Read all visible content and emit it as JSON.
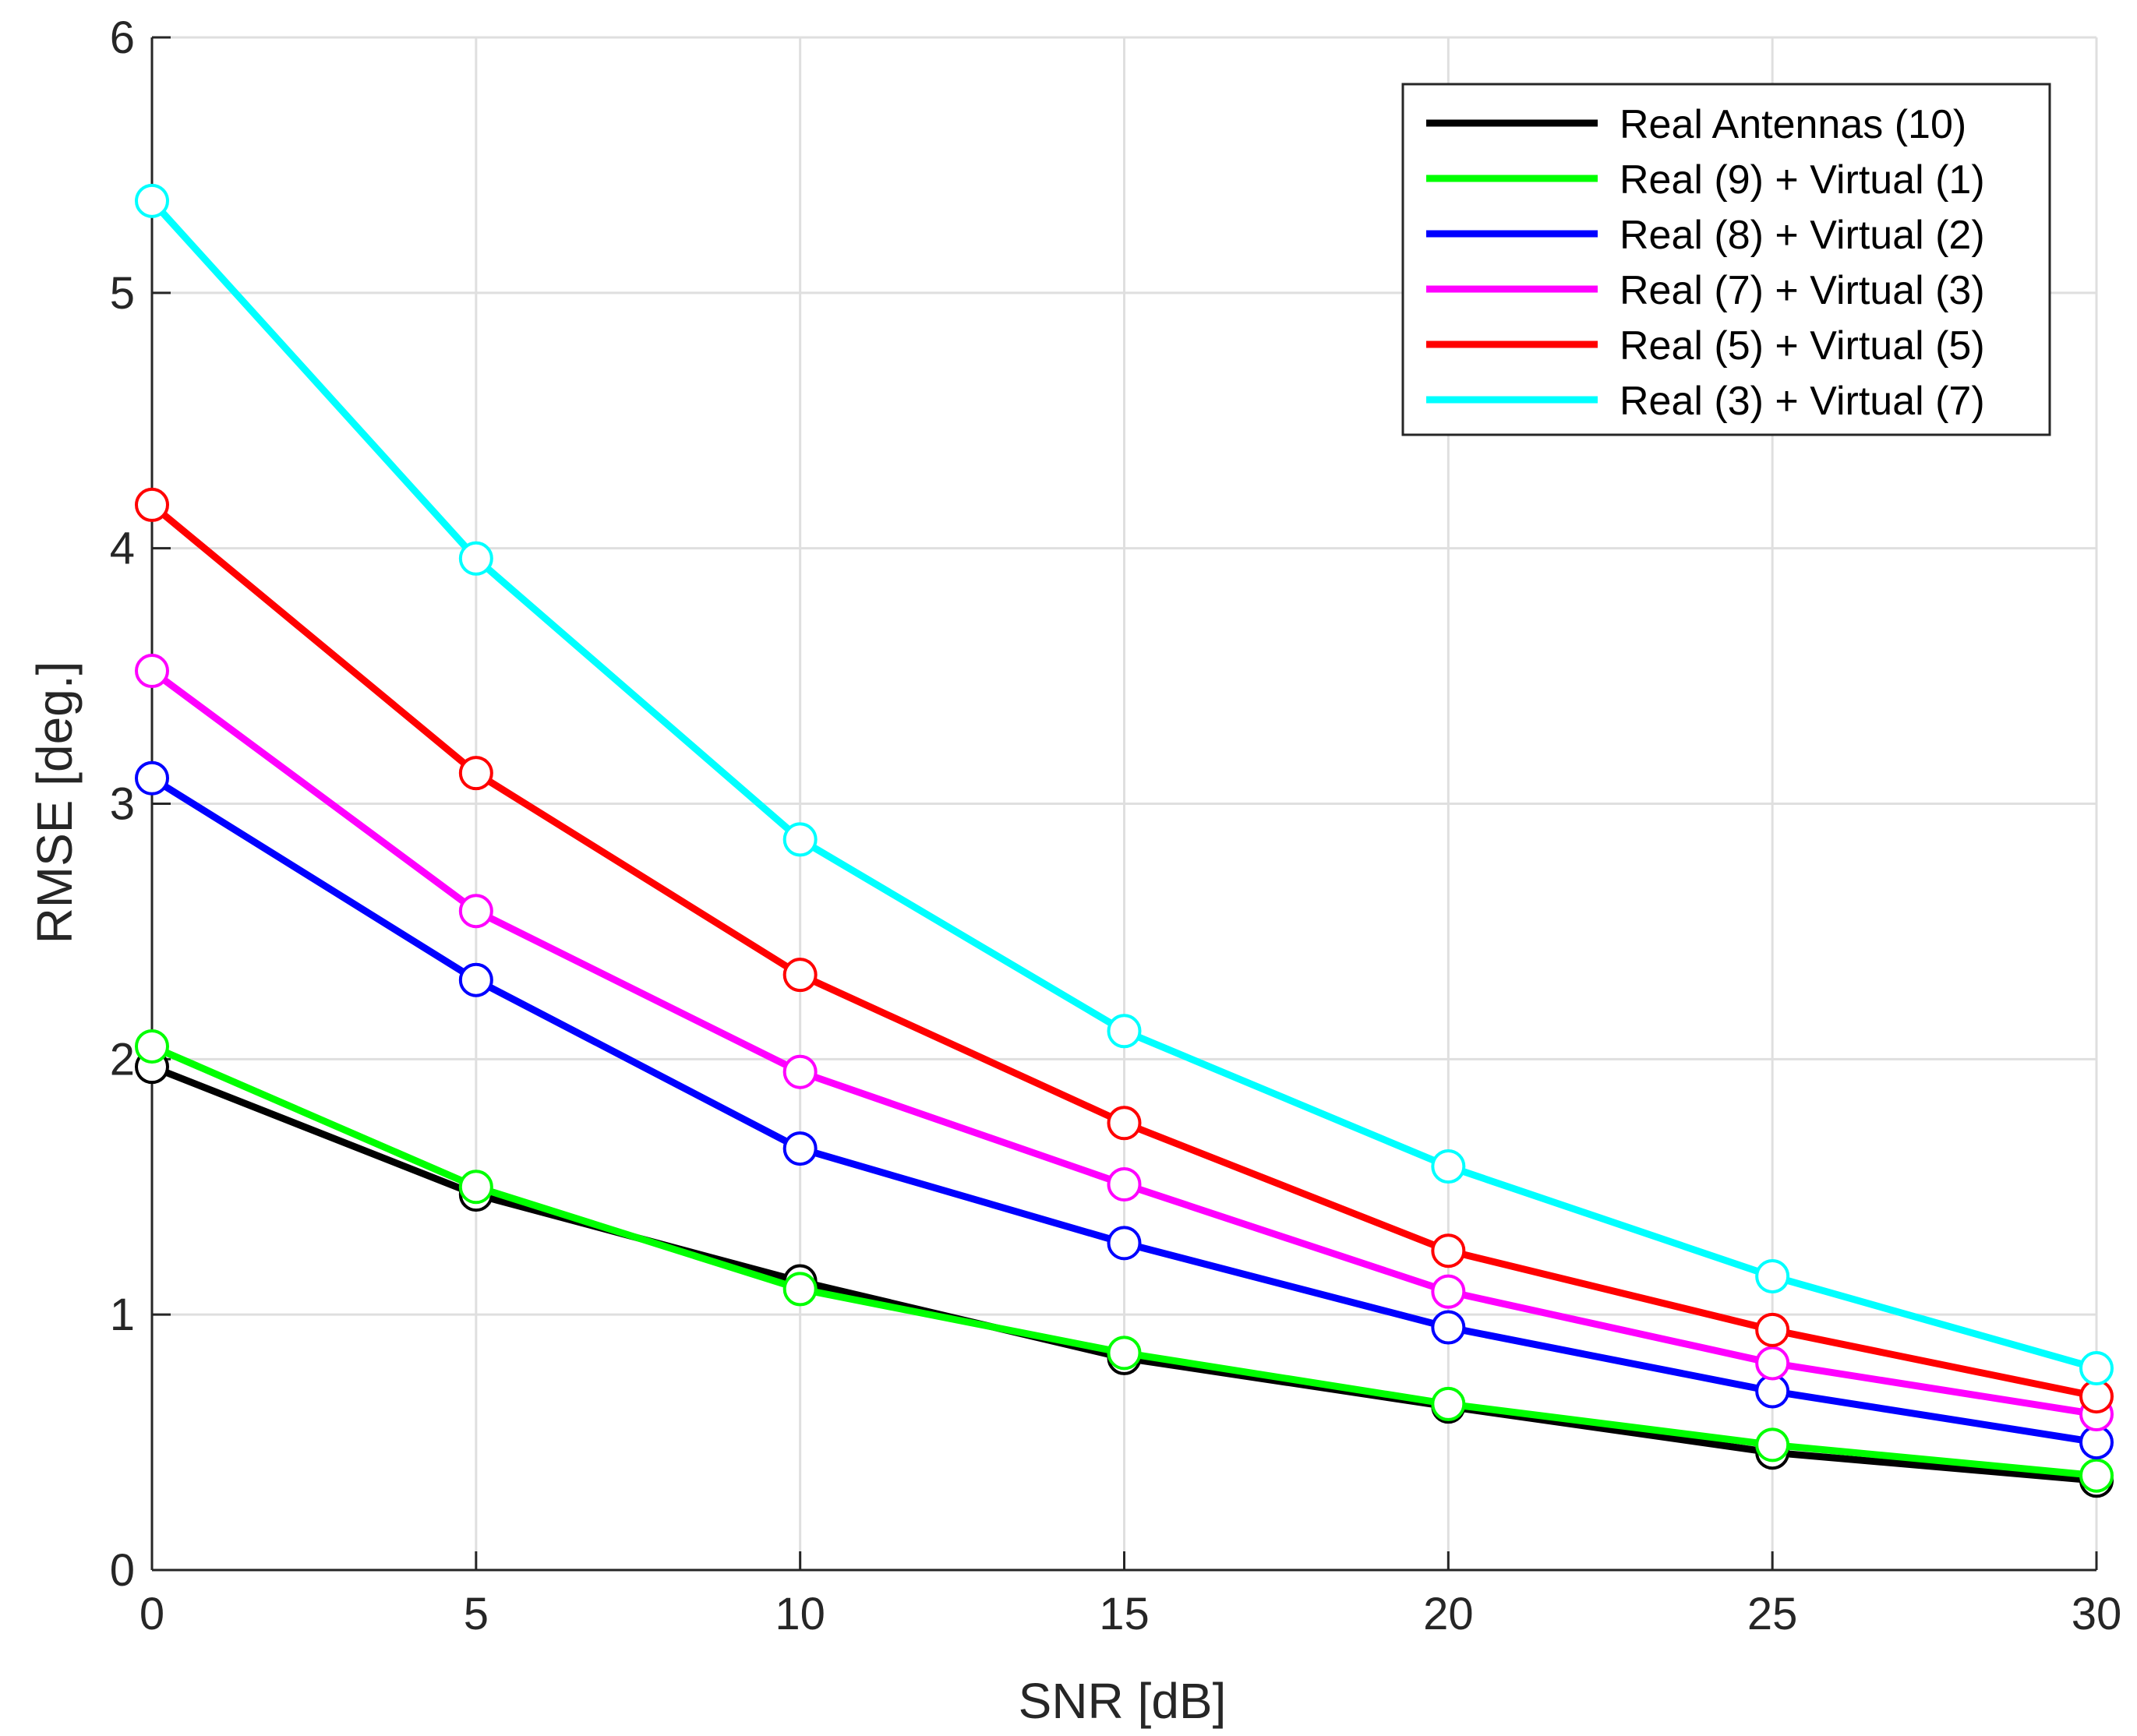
{
  "chart_data": {
    "type": "line",
    "title": "",
    "xlabel": "SNR [dB]",
    "ylabel": "RMSE [deg.]",
    "x": [
      0,
      5,
      10,
      15,
      20,
      25,
      30
    ],
    "xlim": [
      0,
      30
    ],
    "ylim": [
      0,
      6
    ],
    "xticks": [
      "0",
      "5",
      "10",
      "15",
      "20",
      "25",
      "30"
    ],
    "yticks": [
      "0",
      "1",
      "2",
      "3",
      "4",
      "5",
      "6"
    ],
    "grid": true,
    "legend_position": "top-right",
    "marker": "circle",
    "series": [
      {
        "name": "Real Antennas (10)",
        "color": "#000000",
        "values": [
          1.97,
          1.47,
          1.13,
          0.83,
          0.64,
          0.46,
          0.35
        ]
      },
      {
        "name": "Real (9) + Virtual (1)",
        "color": "#00ff00",
        "values": [
          2.05,
          1.5,
          1.1,
          0.85,
          0.65,
          0.49,
          0.37
        ]
      },
      {
        "name": "Real (8) + Virtual (2)",
        "color": "#0000ff",
        "values": [
          3.1,
          2.31,
          1.65,
          1.28,
          0.95,
          0.7,
          0.5
        ]
      },
      {
        "name": "Real (7) + Virtual (3)",
        "color": "#ff00ff",
        "values": [
          3.52,
          2.58,
          1.95,
          1.51,
          1.09,
          0.81,
          0.61
        ]
      },
      {
        "name": "Real (5) + Virtual (5)",
        "color": "#ff0000",
        "values": [
          4.17,
          3.12,
          2.33,
          1.75,
          1.25,
          0.94,
          0.68
        ]
      },
      {
        "name": "Real (3) + Virtual (7)",
        "color": "#00ffff",
        "values": [
          5.36,
          3.96,
          2.86,
          2.11,
          1.58,
          1.15,
          0.79
        ]
      }
    ]
  }
}
